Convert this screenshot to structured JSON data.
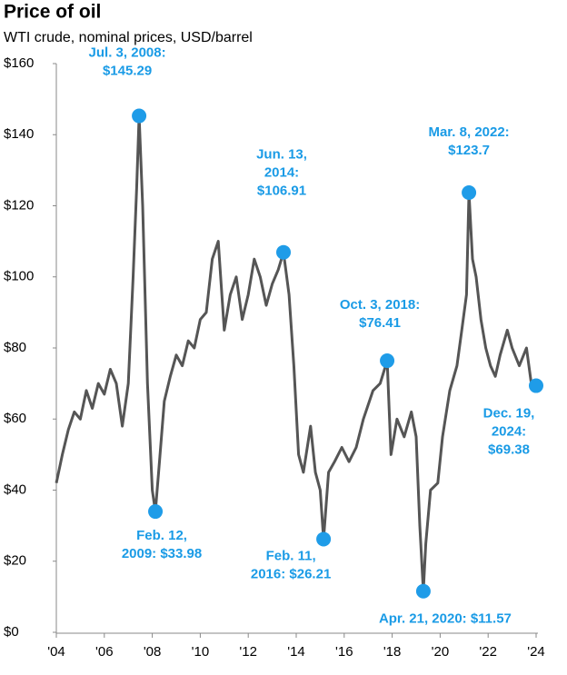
{
  "chart_data": {
    "type": "line",
    "title": "Price of oil",
    "subtitle": "WTI crude, nominal prices, USD/barrel",
    "color": "#555555",
    "marker_color": "#1f9ce8",
    "label_color": "#1a9be6",
    "x": [
      2004.0,
      2004.25,
      2004.5,
      2004.75,
      2005.0,
      2005.25,
      2005.5,
      2005.75,
      2006.0,
      2006.25,
      2006.5,
      2006.75,
      2007.0,
      2007.2,
      2007.35,
      2007.45,
      2007.6,
      2007.8,
      2008.0,
      2008.13,
      2008.3,
      2008.5,
      2008.75,
      2009.0,
      2009.25,
      2009.5,
      2009.75,
      2010.0,
      2010.25,
      2010.5,
      2010.75,
      2011.0,
      2011.25,
      2011.5,
      2011.75,
      2012.0,
      2012.25,
      2012.5,
      2012.75,
      2013.0,
      2013.25,
      2013.47,
      2013.7,
      2013.9,
      2014.1,
      2014.3,
      2014.6,
      2014.8,
      2015.0,
      2015.14,
      2015.35,
      2015.6,
      2015.9,
      2016.2,
      2016.5,
      2016.8,
      2017.2,
      2017.5,
      2017.79,
      2017.95,
      2018.2,
      2018.5,
      2018.8,
      2019.0,
      2019.15,
      2019.3,
      2019.4,
      2019.6,
      2019.9,
      2020.1,
      2020.4,
      2020.7,
      2020.9,
      2021.1,
      2021.2,
      2021.35,
      2021.5,
      2021.7,
      2021.9,
      2022.1,
      2022.3,
      2022.5,
      2022.8,
      2023.0,
      2023.3,
      2023.6,
      2023.8,
      2024.0
    ],
    "values": [
      42,
      50,
      57,
      62,
      60,
      68,
      63,
      70,
      67,
      74,
      70,
      58,
      70,
      100,
      125,
      145.29,
      120,
      70,
      40,
      33.98,
      48,
      65,
      72,
      78,
      75,
      82,
      80,
      88,
      90,
      105,
      110,
      85,
      95,
      100,
      88,
      95,
      105,
      100,
      92,
      98,
      102,
      106.91,
      95,
      75,
      50,
      45,
      58,
      45,
      40,
      26.21,
      45,
      48,
      52,
      48,
      52,
      60,
      68,
      70,
      76.41,
      50,
      60,
      55,
      62,
      55,
      30,
      11.57,
      25,
      40,
      42,
      55,
      68,
      75,
      85,
      95,
      123.7,
      105,
      100,
      88,
      80,
      75,
      72,
      78,
      85,
      80,
      75,
      80,
      70,
      69.38
    ],
    "xlim": [
      2004,
      2024
    ],
    "ylim": [
      0,
      160
    ],
    "xticks": [
      {
        "value": 2004,
        "label": "'04"
      },
      {
        "value": 2006,
        "label": "'06"
      },
      {
        "value": 2008,
        "label": "'08"
      },
      {
        "value": 2010,
        "label": "'10"
      },
      {
        "value": 2012,
        "label": "'12"
      },
      {
        "value": 2014,
        "label": "'14"
      },
      {
        "value": 2016,
        "label": "'16"
      },
      {
        "value": 2018,
        "label": "'18"
      },
      {
        "value": 2020,
        "label": "'20"
      },
      {
        "value": 2022,
        "label": "'22"
      },
      {
        "value": 2024,
        "label": "'24"
      }
    ],
    "yticks": [
      {
        "value": 0,
        "label": "$0"
      },
      {
        "value": 20,
        "label": "$20"
      },
      {
        "value": 40,
        "label": "$40"
      },
      {
        "value": 60,
        "label": "$60"
      },
      {
        "value": 80,
        "label": "$80"
      },
      {
        "value": 100,
        "label": "$100"
      },
      {
        "value": 120,
        "label": "$120"
      },
      {
        "value": 140,
        "label": "$140"
      },
      {
        "value": 160,
        "label": "$160"
      }
    ],
    "annotations": [
      {
        "x": 2007.45,
        "y": 145.29,
        "text": [
          "Jul. 3, 2008:",
          "$145.29"
        ]
      },
      {
        "x": 2008.13,
        "y": 33.98,
        "text": [
          "Feb. 12,",
          "2009: $33.98"
        ]
      },
      {
        "x": 2013.47,
        "y": 106.91,
        "text": [
          "Jun. 13,",
          "2014:",
          "$106.91"
        ]
      },
      {
        "x": 2015.14,
        "y": 26.21,
        "text": [
          "Feb. 11,",
          "2016: $26.21"
        ]
      },
      {
        "x": 2017.79,
        "y": 76.41,
        "text": [
          "Oct. 3, 2018:",
          "$76.41"
        ]
      },
      {
        "x": 2019.3,
        "y": 11.57,
        "text": [
          "Apr. 21, 2020: $11.57"
        ]
      },
      {
        "x": 2021.2,
        "y": 123.7,
        "text": [
          "Mar. 8, 2022:",
          "$123.7"
        ]
      },
      {
        "x": 2024.0,
        "y": 69.38,
        "text": [
          "Dec. 19,",
          "2024:",
          "$69.38"
        ]
      }
    ]
  }
}
